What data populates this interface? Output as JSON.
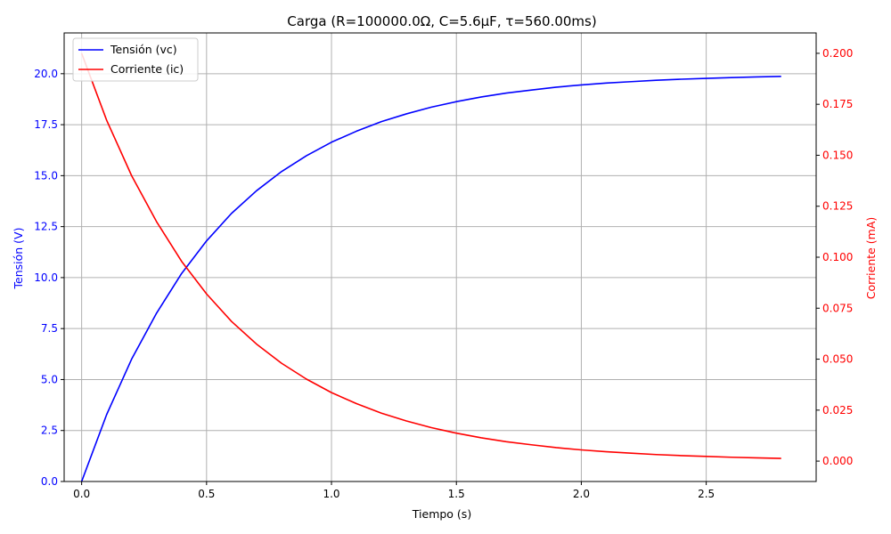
{
  "chart_data": {
    "type": "line",
    "title": "Carga (R=100000.0Ω, C=5.6µF, τ=560.00ms)",
    "xlabel": "Tiempo (s)",
    "ylabel_left": "Tensión (V)",
    "ylabel_right": "Corriente (mA)",
    "xlim": [
      -0.07,
      2.94
    ],
    "ylim_left": [
      0,
      22
    ],
    "ylim_right": [
      -0.01,
      0.21
    ],
    "x_ticks": [
      0.0,
      0.5,
      1.0,
      1.5,
      2.0,
      2.5
    ],
    "x_tick_labels": [
      "0.0",
      "0.5",
      "1.0",
      "1.5",
      "2.0",
      "2.5"
    ],
    "y_left_ticks": [
      0,
      2.5,
      5,
      7.5,
      10,
      12.5,
      15,
      17.5,
      20
    ],
    "y_left_tick_labels": [
      "0.0",
      "2.5",
      "5.0",
      "7.5",
      "10.0",
      "12.5",
      "15.0",
      "17.5",
      "20.0"
    ],
    "y_right_ticks": [
      0,
      0.025,
      0.05,
      0.075,
      0.1,
      0.125,
      0.15,
      0.175,
      0.2
    ],
    "y_right_tick_labels": [
      "0.000",
      "0.025",
      "0.050",
      "0.075",
      "0.100",
      "0.125",
      "0.150",
      "0.175",
      "0.200"
    ],
    "grid": true,
    "legend_position": "top-left",
    "x": [
      0.0,
      0.1,
      0.2,
      0.3,
      0.4,
      0.5,
      0.6,
      0.7,
      0.8,
      0.9,
      1.0,
      1.1,
      1.2,
      1.3,
      1.4,
      1.5,
      1.6,
      1.7,
      1.8,
      1.9,
      2.0,
      2.1,
      2.2,
      2.3,
      2.4,
      2.5,
      2.6,
      2.7,
      2.8
    ],
    "series": [
      {
        "name": "Tensión (vc)",
        "axis": "left",
        "color": "#0000ff",
        "values": [
          0.0,
          3.28,
          6.0,
          8.26,
          10.2,
          11.8,
          13.15,
          14.26,
          15.2,
          15.98,
          16.64,
          17.18,
          17.65,
          18.03,
          18.36,
          18.63,
          18.86,
          19.05,
          19.2,
          19.34,
          19.45,
          19.54,
          19.61,
          19.68,
          19.73,
          19.77,
          19.81,
          19.84,
          19.87
        ]
      },
      {
        "name": "Corriente (ic)",
        "axis": "right",
        "color": "#ff0000",
        "values": [
          0.2,
          0.1672,
          0.14,
          0.1174,
          0.098,
          0.082,
          0.0685,
          0.0574,
          0.048,
          0.0402,
          0.0336,
          0.0282,
          0.0235,
          0.0197,
          0.0164,
          0.0137,
          0.0114,
          0.0095,
          0.008,
          0.0066,
          0.0055,
          0.0046,
          0.0039,
          0.0032,
          0.0027,
          0.0023,
          0.0019,
          0.0016,
          0.0013
        ]
      }
    ]
  }
}
